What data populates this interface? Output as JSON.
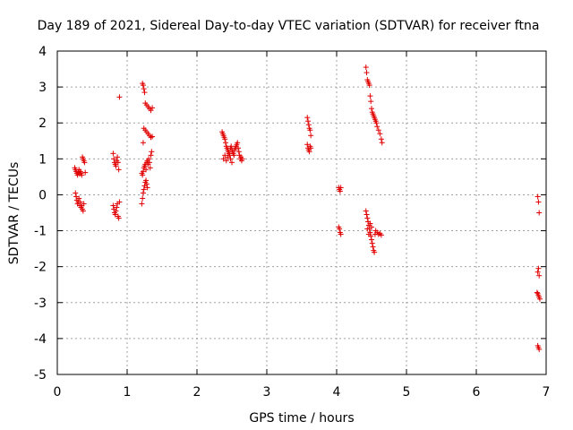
{
  "chart_data": {
    "type": "scatter",
    "title": "Day 189 of 2021, Sidereal Day-to-day VTEC variation (SDTVAR) for receiver ftna",
    "xlabel": "GPS time / hours",
    "ylabel": "SDTVAR / TECUs",
    "xlim": [
      0,
      7
    ],
    "ylim": [
      -5,
      4
    ],
    "xticks": [
      "0",
      "1",
      "2",
      "3",
      "4",
      "5",
      "6",
      "7"
    ],
    "yticks": [
      "-5",
      "-4",
      "-3",
      "-2",
      "-1",
      "0",
      "1",
      "2",
      "3",
      "4"
    ],
    "grid": true,
    "marker": "+",
    "color": "#e00000",
    "series": [
      {
        "name": "SDTVAR",
        "points": [
          [
            0.25,
            0.75
          ],
          [
            0.26,
            0.7
          ],
          [
            0.27,
            0.65
          ],
          [
            0.28,
            0.6
          ],
          [
            0.29,
            0.55
          ],
          [
            0.3,
            0.62
          ],
          [
            0.31,
            0.7
          ],
          [
            0.32,
            0.58
          ],
          [
            0.33,
            0.65
          ],
          [
            0.34,
            0.6
          ],
          [
            0.35,
            0.55
          ],
          [
            0.36,
            1.05
          ],
          [
            0.37,
            1.0
          ],
          [
            0.38,
            0.95
          ],
          [
            0.39,
            0.9
          ],
          [
            0.4,
            0.62
          ],
          [
            0.26,
            0.05
          ],
          [
            0.27,
            -0.05
          ],
          [
            0.28,
            -0.15
          ],
          [
            0.29,
            -0.25
          ],
          [
            0.3,
            -0.2
          ],
          [
            0.31,
            -0.1
          ],
          [
            0.32,
            -0.3
          ],
          [
            0.33,
            -0.2
          ],
          [
            0.34,
            -0.35
          ],
          [
            0.35,
            -0.3
          ],
          [
            0.36,
            -0.4
          ],
          [
            0.37,
            -0.45
          ],
          [
            0.38,
            -0.25
          ],
          [
            0.8,
            1.15
          ],
          [
            0.81,
            1.0
          ],
          [
            0.82,
            0.9
          ],
          [
            0.83,
            0.85
          ],
          [
            0.84,
            0.8
          ],
          [
            0.85,
            0.95
          ],
          [
            0.86,
            1.05
          ],
          [
            0.87,
            0.9
          ],
          [
            0.88,
            0.7
          ],
          [
            0.89,
            2.72
          ],
          [
            0.8,
            -0.3
          ],
          [
            0.81,
            -0.4
          ],
          [
            0.82,
            -0.5
          ],
          [
            0.83,
            -0.55
          ],
          [
            0.84,
            -0.45
          ],
          [
            0.85,
            -0.35
          ],
          [
            0.86,
            -0.25
          ],
          [
            0.87,
            -0.6
          ],
          [
            0.88,
            -0.65
          ],
          [
            0.89,
            -0.2
          ],
          [
            1.22,
            3.1
          ],
          [
            1.23,
            3.05
          ],
          [
            1.24,
            2.95
          ],
          [
            1.25,
            2.85
          ],
          [
            1.26,
            2.55
          ],
          [
            1.28,
            2.5
          ],
          [
            1.3,
            2.45
          ],
          [
            1.32,
            2.4
          ],
          [
            1.34,
            2.35
          ],
          [
            1.36,
            2.42
          ],
          [
            1.24,
            1.85
          ],
          [
            1.26,
            1.8
          ],
          [
            1.28,
            1.75
          ],
          [
            1.3,
            1.7
          ],
          [
            1.32,
            1.65
          ],
          [
            1.34,
            1.6
          ],
          [
            1.36,
            1.62
          ],
          [
            1.23,
            1.45
          ],
          [
            1.21,
            0.6
          ],
          [
            1.22,
            0.55
          ],
          [
            1.23,
            0.65
          ],
          [
            1.24,
            0.75
          ],
          [
            1.25,
            0.8
          ],
          [
            1.26,
            0.85
          ],
          [
            1.27,
            0.7
          ],
          [
            1.28,
            0.9
          ],
          [
            1.29,
            0.95
          ],
          [
            1.3,
            0.85
          ],
          [
            1.31,
            1.0
          ],
          [
            1.32,
            0.9
          ],
          [
            1.33,
            0.75
          ],
          [
            1.34,
            1.1
          ],
          [
            1.35,
            1.2
          ],
          [
            1.21,
            -0.25
          ],
          [
            1.22,
            -0.1
          ],
          [
            1.23,
            0.05
          ],
          [
            1.24,
            0.15
          ],
          [
            1.25,
            0.25
          ],
          [
            1.26,
            0.35
          ],
          [
            1.27,
            0.4
          ],
          [
            1.28,
            0.3
          ],
          [
            1.29,
            0.2
          ],
          [
            2.36,
            1.75
          ],
          [
            2.37,
            1.7
          ],
          [
            2.38,
            1.65
          ],
          [
            2.39,
            1.6
          ],
          [
            2.4,
            1.55
          ],
          [
            2.41,
            1.45
          ],
          [
            2.42,
            1.35
          ],
          [
            2.43,
            1.3
          ],
          [
            2.44,
            1.25
          ],
          [
            2.45,
            1.2
          ],
          [
            2.46,
            1.15
          ],
          [
            2.47,
            1.1
          ],
          [
            2.48,
            1.3
          ],
          [
            2.49,
            1.35
          ],
          [
            2.5,
            1.25
          ],
          [
            2.51,
            1.2
          ],
          [
            2.52,
            1.15
          ],
          [
            2.53,
            1.1
          ],
          [
            2.54,
            1.25
          ],
          [
            2.55,
            1.3
          ],
          [
            2.56,
            1.35
          ],
          [
            2.57,
            1.4
          ],
          [
            2.58,
            1.45
          ],
          [
            2.59,
            1.3
          ],
          [
            2.6,
            1.2
          ],
          [
            2.61,
            1.1
          ],
          [
            2.62,
            1.0
          ],
          [
            2.63,
            1.05
          ],
          [
            2.64,
            0.95
          ],
          [
            2.65,
            1.0
          ],
          [
            2.38,
            1.0
          ],
          [
            2.4,
            1.1
          ],
          [
            2.42,
            0.95
          ],
          [
            2.44,
            1.05
          ],
          [
            2.46,
            1.15
          ],
          [
            2.48,
            1.0
          ],
          [
            2.5,
            0.9
          ],
          [
            3.58,
            2.15
          ],
          [
            3.59,
            2.05
          ],
          [
            3.6,
            1.95
          ],
          [
            3.61,
            1.85
          ],
          [
            3.62,
            1.8
          ],
          [
            3.63,
            1.65
          ],
          [
            3.58,
            1.4
          ],
          [
            3.59,
            1.3
          ],
          [
            3.6,
            1.25
          ],
          [
            3.61,
            1.2
          ],
          [
            3.62,
            1.35
          ],
          [
            3.63,
            1.3
          ],
          [
            4.03,
            0.2
          ],
          [
            4.04,
            0.15
          ],
          [
            4.05,
            0.1
          ],
          [
            4.06,
            0.2
          ],
          [
            4.03,
            -0.9
          ],
          [
            4.04,
            -0.95
          ],
          [
            4.05,
            -1.05
          ],
          [
            4.06,
            -1.1
          ],
          [
            4.42,
            3.55
          ],
          [
            4.43,
            3.4
          ],
          [
            4.44,
            3.2
          ],
          [
            4.45,
            3.15
          ],
          [
            4.46,
            3.1
          ],
          [
            4.47,
            3.05
          ],
          [
            4.48,
            2.75
          ],
          [
            4.49,
            2.6
          ],
          [
            4.5,
            2.4
          ],
          [
            4.51,
            2.3
          ],
          [
            4.52,
            2.25
          ],
          [
            4.53,
            2.2
          ],
          [
            4.54,
            2.15
          ],
          [
            4.55,
            2.1
          ],
          [
            4.56,
            2.05
          ],
          [
            4.57,
            2.0
          ],
          [
            4.58,
            1.9
          ],
          [
            4.6,
            1.8
          ],
          [
            4.62,
            1.7
          ],
          [
            4.64,
            1.55
          ],
          [
            4.65,
            1.45
          ],
          [
            4.42,
            -0.45
          ],
          [
            4.43,
            -0.55
          ],
          [
            4.44,
            -0.65
          ],
          [
            4.45,
            -0.75
          ],
          [
            4.46,
            -0.85
          ],
          [
            4.47,
            -0.95
          ],
          [
            4.48,
            -1.05
          ],
          [
            4.49,
            -1.15
          ],
          [
            4.5,
            -1.25
          ],
          [
            4.51,
            -1.35
          ],
          [
            4.52,
            -1.45
          ],
          [
            4.53,
            -1.55
          ],
          [
            4.54,
            -1.6
          ],
          [
            4.55,
            -1.1
          ],
          [
            4.56,
            -1.0
          ],
          [
            4.58,
            -1.05
          ],
          [
            4.6,
            -1.1
          ],
          [
            4.62,
            -1.08
          ],
          [
            4.64,
            -1.12
          ],
          [
            4.44,
            -0.95
          ],
          [
            4.46,
            -1.1
          ],
          [
            4.48,
            -0.8
          ],
          [
            4.5,
            -0.9
          ],
          [
            6.88,
            -0.05
          ],
          [
            6.89,
            -0.2
          ],
          [
            6.9,
            -0.5
          ],
          [
            6.88,
            -2.15
          ],
          [
            6.89,
            -2.05
          ],
          [
            6.9,
            -2.25
          ],
          [
            6.87,
            -2.72
          ],
          [
            6.88,
            -2.75
          ],
          [
            6.89,
            -2.8
          ],
          [
            6.9,
            -2.85
          ],
          [
            6.91,
            -2.9
          ],
          [
            6.88,
            -4.2
          ],
          [
            6.89,
            -4.25
          ],
          [
            6.9,
            -4.3
          ]
        ]
      }
    ]
  }
}
